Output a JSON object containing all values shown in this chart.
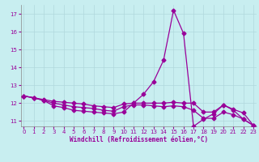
{
  "xlabel": "Windchill (Refroidissement éolien,°C)",
  "background_color": "#c8eef0",
  "grid_color": "#b0d8dc",
  "line_color": "#990099",
  "yticks": [
    11,
    12,
    13,
    14,
    15,
    16,
    17
  ],
  "xticks": [
    0,
    1,
    2,
    3,
    4,
    5,
    6,
    7,
    8,
    9,
    10,
    11,
    12,
    13,
    14,
    15,
    16,
    17,
    18,
    19,
    20,
    21,
    22,
    23
  ],
  "xlim": [
    -0.3,
    23.3
  ],
  "ylim": [
    10.7,
    17.5
  ],
  "line1_x": [
    0,
    1,
    2,
    3,
    4,
    5,
    6,
    7,
    8,
    9,
    10,
    11,
    12,
    13,
    14,
    15,
    16,
    17,
    18,
    19,
    20,
    21,
    22,
    23
  ],
  "line1_y": [
    12.4,
    12.3,
    12.15,
    11.85,
    11.75,
    11.6,
    11.55,
    11.5,
    11.45,
    11.4,
    11.5,
    12.0,
    12.5,
    13.2,
    14.4,
    17.2,
    15.9,
    10.7,
    11.1,
    11.4,
    11.9,
    11.6,
    11.1,
    10.75
  ],
  "line2_x": [
    0,
    1,
    2,
    3,
    4,
    5,
    6,
    7,
    8,
    9,
    10,
    11,
    12,
    13,
    14,
    15,
    16,
    17,
    18,
    19,
    20,
    21,
    22,
    23
  ],
  "line2_y": [
    12.4,
    12.3,
    12.2,
    12.1,
    12.05,
    12.0,
    11.95,
    11.85,
    11.8,
    11.75,
    11.95,
    12.0,
    12.0,
    12.0,
    12.0,
    12.05,
    12.0,
    12.0,
    11.5,
    11.5,
    11.9,
    11.65,
    11.45,
    10.75
  ],
  "line3_x": [
    0,
    1,
    2,
    3,
    4,
    5,
    6,
    7,
    8,
    9,
    10,
    11,
    12,
    13,
    14,
    15,
    16,
    17,
    18,
    19,
    20,
    21,
    22,
    23
  ],
  "line3_y": [
    12.4,
    12.3,
    12.15,
    12.0,
    11.9,
    11.8,
    11.75,
    11.7,
    11.6,
    11.55,
    11.8,
    11.9,
    11.9,
    11.85,
    11.8,
    11.85,
    11.8,
    11.6,
    11.15,
    11.15,
    11.5,
    11.35,
    11.1,
    10.75
  ],
  "marker": "D",
  "markersize": 2.5,
  "linewidth": 0.9
}
